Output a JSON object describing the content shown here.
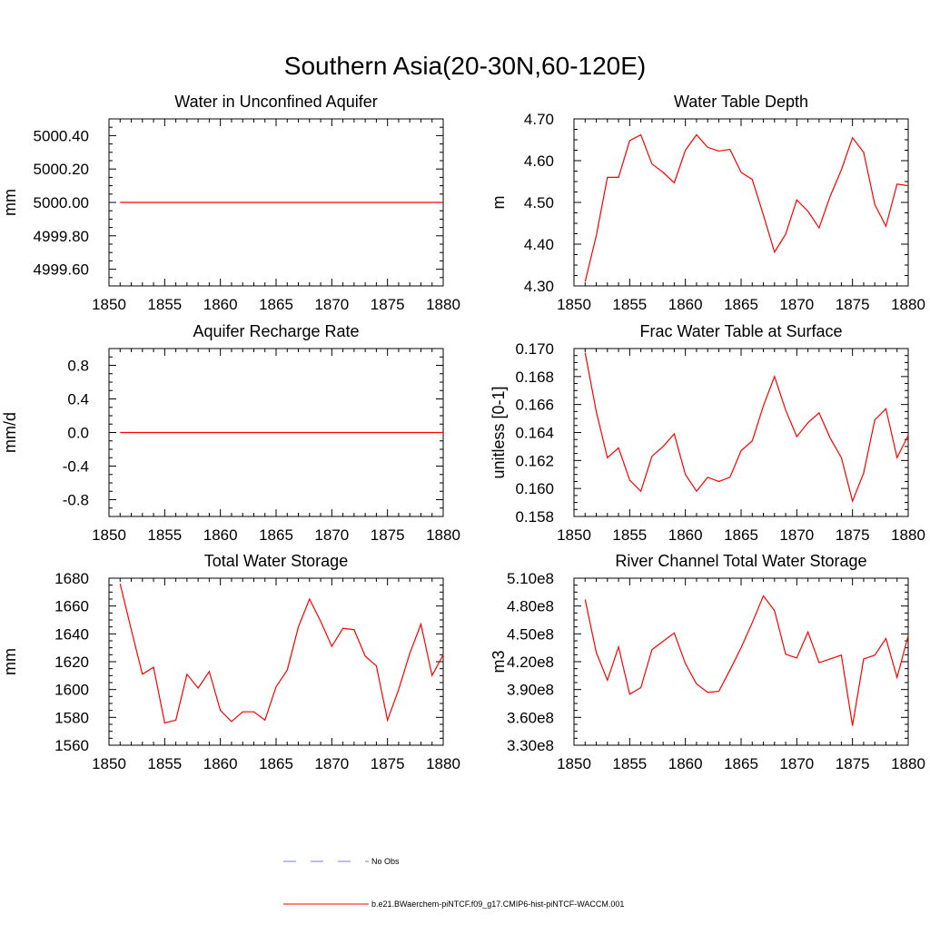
{
  "figure_title": "Southern Asia(20-30N,60-120E)",
  "chart_data": [
    {
      "type": "line",
      "title": "Water in Unconfined Aquifer",
      "ylabel": "mm",
      "xlim": [
        1850,
        1880
      ],
      "ylim": [
        4999.5,
        5000.5
      ],
      "xticks": [
        1850,
        1855,
        1860,
        1865,
        1870,
        1875,
        1880
      ],
      "xtick_labels": [
        "1850",
        "1855",
        "1860",
        "1865",
        "1870",
        "1875",
        "1880"
      ],
      "yticks": [
        4999.6,
        4999.8,
        5000.0,
        5000.2,
        5000.4
      ],
      "ytick_labels": [
        "4999.60",
        "4999.80",
        "5000.00",
        "5000.20",
        "5000.40"
      ],
      "series": [
        {
          "color": "#ff0000",
          "x": [
            1851,
            1852,
            1853,
            1854,
            1855,
            1856,
            1857,
            1858,
            1859,
            1860,
            1861,
            1862,
            1863,
            1864,
            1865,
            1866,
            1867,
            1868,
            1869,
            1870,
            1871,
            1872,
            1873,
            1874,
            1875,
            1876,
            1877,
            1878,
            1879,
            1880
          ],
          "y": [
            5000,
            5000,
            5000,
            5000,
            5000,
            5000,
            5000,
            5000,
            5000,
            5000,
            5000,
            5000,
            5000,
            5000,
            5000,
            5000,
            5000,
            5000,
            5000,
            5000,
            5000,
            5000,
            5000,
            5000,
            5000,
            5000,
            5000,
            5000,
            5000,
            5000
          ]
        }
      ]
    },
    {
      "type": "line",
      "title": "Water Table Depth",
      "ylabel": "m",
      "xlim": [
        1850,
        1880
      ],
      "ylim": [
        4.3,
        4.7
      ],
      "xticks": [
        1850,
        1855,
        1860,
        1865,
        1870,
        1875,
        1880
      ],
      "xtick_labels": [
        "1850",
        "1855",
        "1860",
        "1865",
        "1870",
        "1875",
        "1880"
      ],
      "yticks": [
        4.3,
        4.4,
        4.5,
        4.6,
        4.7
      ],
      "ytick_labels": [
        "4.30",
        "4.40",
        "4.50",
        "4.60",
        "4.70"
      ],
      "series": [
        {
          "color": "#ff0000",
          "x": [
            1851,
            1852,
            1853,
            1854,
            1855,
            1856,
            1857,
            1858,
            1859,
            1860,
            1861,
            1862,
            1863,
            1864,
            1865,
            1866,
            1867,
            1868,
            1869,
            1870,
            1871,
            1872,
            1873,
            1874,
            1875,
            1876,
            1877,
            1878,
            1879,
            1880
          ],
          "y": [
            4.31,
            4.42,
            4.56,
            4.56,
            4.648,
            4.662,
            4.592,
            4.572,
            4.547,
            4.625,
            4.662,
            4.632,
            4.623,
            4.627,
            4.572,
            4.555,
            4.47,
            4.381,
            4.424,
            4.506,
            4.479,
            4.439,
            4.515,
            4.578,
            4.655,
            4.62,
            4.495,
            4.443,
            4.544,
            4.54
          ]
        }
      ]
    },
    {
      "type": "line",
      "title": "Aquifer Recharge Rate",
      "ylabel": "mm/d",
      "xlim": [
        1850,
        1880
      ],
      "ylim": [
        -1.0,
        1.0
      ],
      "xticks": [
        1850,
        1855,
        1860,
        1865,
        1870,
        1875,
        1880
      ],
      "xtick_labels": [
        "1850",
        "1855",
        "1860",
        "1865",
        "1870",
        "1875",
        "1880"
      ],
      "yticks": [
        -0.8,
        -0.4,
        0.0,
        0.4,
        0.8
      ],
      "ytick_labels": [
        "-0.8",
        "-0.4",
        "0.0",
        "0.4",
        "0.8"
      ],
      "series": [
        {
          "color": "#ff0000",
          "x": [
            1851,
            1852,
            1853,
            1854,
            1855,
            1856,
            1857,
            1858,
            1859,
            1860,
            1861,
            1862,
            1863,
            1864,
            1865,
            1866,
            1867,
            1868,
            1869,
            1870,
            1871,
            1872,
            1873,
            1874,
            1875,
            1876,
            1877,
            1878,
            1879,
            1880
          ],
          "y": [
            0,
            0,
            0,
            0,
            0,
            0,
            0,
            0,
            0,
            0,
            0,
            0,
            0,
            0,
            0,
            0,
            0,
            0,
            0,
            0,
            0,
            0,
            0,
            0,
            0,
            0,
            0,
            0,
            0,
            0
          ]
        }
      ]
    },
    {
      "type": "line",
      "title": "Frac Water Table at Surface",
      "ylabel": "unitless [0-1]",
      "xlim": [
        1850,
        1880
      ],
      "ylim": [
        0.158,
        0.17
      ],
      "xticks": [
        1850,
        1855,
        1860,
        1865,
        1870,
        1875,
        1880
      ],
      "xtick_labels": [
        "1850",
        "1855",
        "1860",
        "1865",
        "1870",
        "1875",
        "1880"
      ],
      "yticks": [
        0.158,
        0.16,
        0.162,
        0.164,
        0.166,
        0.168,
        0.17
      ],
      "ytick_labels": [
        "0.158",
        "0.160",
        "0.162",
        "0.164",
        "0.166",
        "0.168",
        "0.170"
      ],
      "series": [
        {
          "color": "#ff0000",
          "x": [
            1851,
            1852,
            1853,
            1854,
            1855,
            1856,
            1857,
            1858,
            1859,
            1860,
            1861,
            1862,
            1863,
            1864,
            1865,
            1866,
            1867,
            1868,
            1869,
            1870,
            1871,
            1872,
            1873,
            1874,
            1875,
            1876,
            1877,
            1878,
            1879,
            1880
          ],
          "y": [
            0.1697,
            0.1655,
            0.1622,
            0.1629,
            0.1606,
            0.1598,
            0.1623,
            0.163,
            0.1639,
            0.161,
            0.1598,
            0.1608,
            0.1605,
            0.1608,
            0.1627,
            0.1634,
            0.1659,
            0.168,
            0.1656,
            0.1637,
            0.1647,
            0.1654,
            0.1636,
            0.1622,
            0.1591,
            0.1611,
            0.1649,
            0.1657,
            0.1622,
            0.1638
          ]
        }
      ]
    },
    {
      "type": "line",
      "title": "Total Water Storage",
      "ylabel": "mm",
      "xlim": [
        1850,
        1880
      ],
      "ylim": [
        1560,
        1680
      ],
      "xticks": [
        1850,
        1855,
        1860,
        1865,
        1870,
        1875,
        1880
      ],
      "xtick_labels": [
        "1850",
        "1855",
        "1860",
        "1865",
        "1870",
        "1875",
        "1880"
      ],
      "yticks": [
        1560,
        1580,
        1600,
        1620,
        1640,
        1660,
        1680
      ],
      "ytick_labels": [
        "1560",
        "1580",
        "1600",
        "1620",
        "1640",
        "1660",
        "1680"
      ],
      "series": [
        {
          "color": "#ff0000",
          "x": [
            1851,
            1852,
            1853,
            1854,
            1855,
            1856,
            1857,
            1858,
            1859,
            1860,
            1861,
            1862,
            1863,
            1864,
            1865,
            1866,
            1867,
            1868,
            1869,
            1870,
            1871,
            1872,
            1873,
            1874,
            1875,
            1876,
            1877,
            1878,
            1879,
            1880
          ],
          "y": [
            1676,
            1643,
            1611,
            1616,
            1576,
            1578,
            1611,
            1601,
            1613,
            1585,
            1577,
            1584,
            1584,
            1578,
            1602,
            1614,
            1645,
            1665,
            1649,
            1631,
            1644,
            1643,
            1624,
            1617,
            1578,
            1600,
            1626,
            1647,
            1610,
            1625
          ]
        }
      ]
    },
    {
      "type": "line",
      "title": "River Channel Total Water Storage",
      "ylabel": "m3",
      "xlim": [
        1850,
        1880
      ],
      "ylim": [
        330000000,
        510000000
      ],
      "xticks": [
        1850,
        1855,
        1860,
        1865,
        1870,
        1875,
        1880
      ],
      "xtick_labels": [
        "1850",
        "1855",
        "1860",
        "1865",
        "1870",
        "1875",
        "1880"
      ],
      "yticks": [
        330000000,
        360000000,
        390000000,
        420000000,
        450000000,
        480000000,
        510000000
      ],
      "ytick_labels": [
        "3.30e8",
        "3.60e8",
        "3.90e8",
        "4.20e8",
        "4.50e8",
        "4.80e8",
        "5.10e8"
      ],
      "series": [
        {
          "color": "#ff0000",
          "x": [
            1851,
            1852,
            1853,
            1854,
            1855,
            1856,
            1857,
            1858,
            1859,
            1860,
            1861,
            1862,
            1863,
            1864,
            1865,
            1866,
            1867,
            1868,
            1869,
            1870,
            1871,
            1872,
            1873,
            1874,
            1875,
            1876,
            1877,
            1878,
            1879,
            1880
          ],
          "y": [
            487000000,
            430000000,
            400000000,
            436000000,
            385000000,
            392000000,
            433000000,
            442000000,
            451000000,
            418000000,
            396000000,
            387000000,
            388000000,
            411000000,
            435000000,
            462000000,
            491000000,
            475000000,
            428000000,
            424000000,
            452000000,
            419000000,
            423000000,
            427000000,
            351000000,
            423000000,
            427000000,
            445000000,
            403000000,
            448000000
          ]
        }
      ]
    }
  ],
  "legend": {
    "items": [
      {
        "label": "No Obs",
        "color": "#7b7bd6",
        "style": "dashed"
      },
      {
        "label": "b.e21.BWaerchem-piNTCF.f09_g17.CMIP6-hist-piNTCF-WACCM.001",
        "color": "#ff0000",
        "style": "solid"
      }
    ]
  }
}
